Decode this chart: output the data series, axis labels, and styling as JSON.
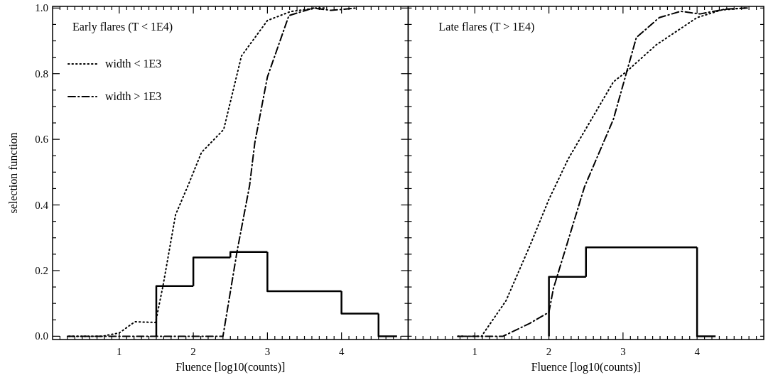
{
  "chart_data": [
    {
      "type": "line",
      "title": "Early flares (T < 1E4)",
      "xlabel": "Fluence [log10(counts)]",
      "ylabel": "selection function",
      "xlim": [
        0.1,
        4.9
      ],
      "ylim": [
        -0.01,
        1.005
      ],
      "legend": "top left",
      "xticks": [
        {
          "value": 0.2,
          "label": null
        },
        {
          "value": 0.3,
          "label": null
        },
        {
          "value": 0.4,
          "label": null
        },
        {
          "value": 0.5,
          "label": null
        },
        {
          "value": 0.6,
          "label": null
        },
        {
          "value": 0.7,
          "label": null
        },
        {
          "value": 0.8,
          "label": null
        },
        {
          "value": 0.9,
          "label": null
        },
        1,
        {
          "value": 1.1,
          "label": null
        },
        {
          "value": 1.2,
          "label": null
        },
        {
          "value": 1.3,
          "label": null
        },
        {
          "value": 1.4,
          "label": null
        },
        {
          "value": 1.5,
          "label": null
        },
        {
          "value": 1.6,
          "label": null
        },
        {
          "value": 1.7,
          "label": null
        },
        {
          "value": 1.8,
          "label": null
        },
        {
          "value": 1.9,
          "label": null
        },
        2,
        {
          "value": 2.1,
          "label": null
        },
        {
          "value": 2.2,
          "label": null
        },
        {
          "value": 2.3,
          "label": null
        },
        {
          "value": 2.4,
          "label": null
        },
        {
          "value": 2.5,
          "label": null
        },
        {
          "value": 2.6,
          "label": null
        },
        {
          "value": 2.7,
          "label": null
        },
        {
          "value": 2.8,
          "label": null
        },
        {
          "value": 2.9,
          "label": null
        },
        3,
        {
          "value": 3.1,
          "label": null
        },
        {
          "value": 3.2,
          "label": null
        },
        {
          "value": 3.3,
          "label": null
        },
        {
          "value": 3.4,
          "label": null
        },
        {
          "value": 3.5,
          "label": null
        },
        {
          "value": 3.6,
          "label": null
        },
        {
          "value": 3.7,
          "label": null
        },
        {
          "value": 3.8,
          "label": null
        },
        {
          "value": 3.9,
          "label": null
        },
        4,
        {
          "value": 4.1,
          "label": null
        },
        {
          "value": 4.2,
          "label": null
        },
        {
          "value": 4.3,
          "label": null
        },
        {
          "value": 4.4,
          "label": null
        },
        {
          "value": 4.5,
          "label": null
        },
        {
          "value": 4.6,
          "label": null
        },
        {
          "value": 4.7,
          "label": null
        },
        {
          "value": 4.8,
          "label": null
        }
      ],
      "yticks": [
        {
          "value": 0,
          "label": "0.0"
        },
        {
          "value": 0.05,
          "label": null
        },
        {
          "value": 0.1,
          "label": null
        },
        {
          "value": 0.15,
          "label": null
        },
        {
          "value": 0.2,
          "label": "0.2"
        },
        {
          "value": 0.25,
          "label": null
        },
        {
          "value": 0.3,
          "label": null
        },
        {
          "value": 0.35,
          "label": null
        },
        {
          "value": 0.4,
          "label": "0.4"
        },
        {
          "value": 0.45,
          "label": null
        },
        {
          "value": 0.5,
          "label": null
        },
        {
          "value": 0.55,
          "label": null
        },
        {
          "value": 0.6,
          "label": "0.6"
        },
        {
          "value": 0.65,
          "label": null
        },
        {
          "value": 0.7,
          "label": null
        },
        {
          "value": 0.75,
          "label": null
        },
        {
          "value": 0.8,
          "label": "0.8"
        },
        {
          "value": 0.85,
          "label": null
        },
        {
          "value": 0.9,
          "label": null
        },
        {
          "value": 0.95,
          "label": null
        },
        {
          "value": 1,
          "label": "1.0"
        }
      ],
      "series": [
        {
          "type": "histogram",
          "color": "#000000",
          "line_style": "solid",
          "bins": [
            1.5,
            2,
            2.5,
            3,
            4,
            4.5,
            4.75
          ],
          "values": [
            0.153,
            0.24,
            0.257,
            0.137,
            0.069,
            0
          ]
        },
        {
          "name": "width < 1E3",
          "color": "#000000",
          "line_style": "dotted",
          "x": [
            0.32,
            0.77,
            1.0,
            1.21,
            1.49,
            1.59,
            1.76,
            1.93,
            2.11,
            2.41,
            2.65,
            3.0,
            3.31,
            3.65,
            3.8
          ],
          "values": [
            0,
            0,
            0.01,
            0.044,
            0.042,
            0.153,
            0.37,
            0.46,
            0.56,
            0.63,
            0.854,
            0.962,
            0.989,
            1.0,
            1.0
          ]
        },
        {
          "name": "width > 1E3",
          "color": "#000000",
          "line_style": "dashdot",
          "x": [
            0.3,
            2.4,
            2.59,
            2.76,
            2.83,
            3.0,
            3.29,
            3.62,
            3.86,
            4.2
          ],
          "values": [
            0,
            0,
            0.258,
            0.46,
            0.59,
            0.79,
            0.977,
            1.0,
            0.993,
            1.0
          ]
        }
      ]
    },
    {
      "type": "line",
      "title": "Late flares  (T > 1E4)",
      "xlabel": "Fluence [log10(counts)]",
      "xlim": [
        0.1,
        4.9
      ],
      "ylim": [
        -0.01,
        1.005
      ],
      "tick_labels": "x",
      "xticks": [
        {
          "value": 0.2,
          "label": null
        },
        {
          "value": 0.3,
          "label": null
        },
        {
          "value": 0.4,
          "label": null
        },
        {
          "value": 0.5,
          "label": null
        },
        {
          "value": 0.6,
          "label": null
        },
        {
          "value": 0.7,
          "label": null
        },
        {
          "value": 0.8,
          "label": null
        },
        {
          "value": 0.9,
          "label": null
        },
        1,
        {
          "value": 1.1,
          "label": null
        },
        {
          "value": 1.2,
          "label": null
        },
        {
          "value": 1.3,
          "label": null
        },
        {
          "value": 1.4,
          "label": null
        },
        {
          "value": 1.5,
          "label": null
        },
        {
          "value": 1.6,
          "label": null
        },
        {
          "value": 1.7,
          "label": null
        },
        {
          "value": 1.8,
          "label": null
        },
        {
          "value": 1.9,
          "label": null
        },
        2,
        {
          "value": 2.1,
          "label": null
        },
        {
          "value": 2.2,
          "label": null
        },
        {
          "value": 2.3,
          "label": null
        },
        {
          "value": 2.4,
          "label": null
        },
        {
          "value": 2.5,
          "label": null
        },
        {
          "value": 2.6,
          "label": null
        },
        {
          "value": 2.7,
          "label": null
        },
        {
          "value": 2.8,
          "label": null
        },
        {
          "value": 2.9,
          "label": null
        },
        3,
        {
          "value": 3.1,
          "label": null
        },
        {
          "value": 3.2,
          "label": null
        },
        {
          "value": 3.3,
          "label": null
        },
        {
          "value": 3.4,
          "label": null
        },
        {
          "value": 3.5,
          "label": null
        },
        {
          "value": 3.6,
          "label": null
        },
        {
          "value": 3.7,
          "label": null
        },
        {
          "value": 3.8,
          "label": null
        },
        {
          "value": 3.9,
          "label": null
        },
        4,
        {
          "value": 4.1,
          "label": null
        },
        {
          "value": 4.2,
          "label": null
        },
        {
          "value": 4.3,
          "label": null
        },
        {
          "value": 4.4,
          "label": null
        },
        {
          "value": 4.5,
          "label": null
        },
        {
          "value": 4.6,
          "label": null
        },
        {
          "value": 4.7,
          "label": null
        },
        {
          "value": 4.8,
          "label": null
        }
      ],
      "yticks": [
        {
          "value": 0,
          "label": null
        },
        {
          "value": 0.05,
          "label": null
        },
        {
          "value": 0.1,
          "label": null
        },
        {
          "value": 0.15,
          "label": null
        },
        {
          "value": 0.2,
          "label": null
        },
        {
          "value": 0.25,
          "label": null
        },
        {
          "value": 0.3,
          "label": null
        },
        {
          "value": 0.35,
          "label": null
        },
        {
          "value": 0.4,
          "label": null
        },
        {
          "value": 0.45,
          "label": null
        },
        {
          "value": 0.5,
          "label": null
        },
        {
          "value": 0.55,
          "label": null
        },
        {
          "value": 0.6,
          "label": null
        },
        {
          "value": 0.65,
          "label": null
        },
        {
          "value": 0.7,
          "label": null
        },
        {
          "value": 0.75,
          "label": null
        },
        {
          "value": 0.8,
          "label": null
        },
        {
          "value": 0.85,
          "label": null
        },
        {
          "value": 0.9,
          "label": null
        },
        {
          "value": 0.95,
          "label": null
        },
        {
          "value": 1,
          "label": null
        }
      ],
      "series": [
        {
          "type": "histogram",
          "color": "#000000",
          "line_style": "solid",
          "bins": [
            2,
            2.5,
            4,
            4.25
          ],
          "values": [
            0.181,
            0.271,
            0
          ]
        },
        {
          "color": "#000000",
          "line_style": "dotted",
          "x": [
            0.77,
            1.09,
            1.42,
            1.74,
            2.0,
            2.26,
            2.87,
            3.04,
            3.45,
            4.0,
            4.33,
            4.65
          ],
          "values": [
            0,
            0,
            0.108,
            0.274,
            0.417,
            0.54,
            0.775,
            0.805,
            0.888,
            0.971,
            0.994,
            1.0
          ]
        },
        {
          "color": "#000000",
          "line_style": "dashdot",
          "x": [
            0.77,
            1.38,
            1.74,
            2.0,
            2.06,
            2.48,
            2.87,
            3.18,
            3.49,
            3.78,
            4.04,
            4.39,
            4.69
          ],
          "values": [
            0,
            0,
            0.039,
            0.073,
            0.145,
            0.455,
            0.661,
            0.91,
            0.971,
            0.99,
            0.982,
            0.997,
            1.0
          ]
        }
      ]
    }
  ]
}
